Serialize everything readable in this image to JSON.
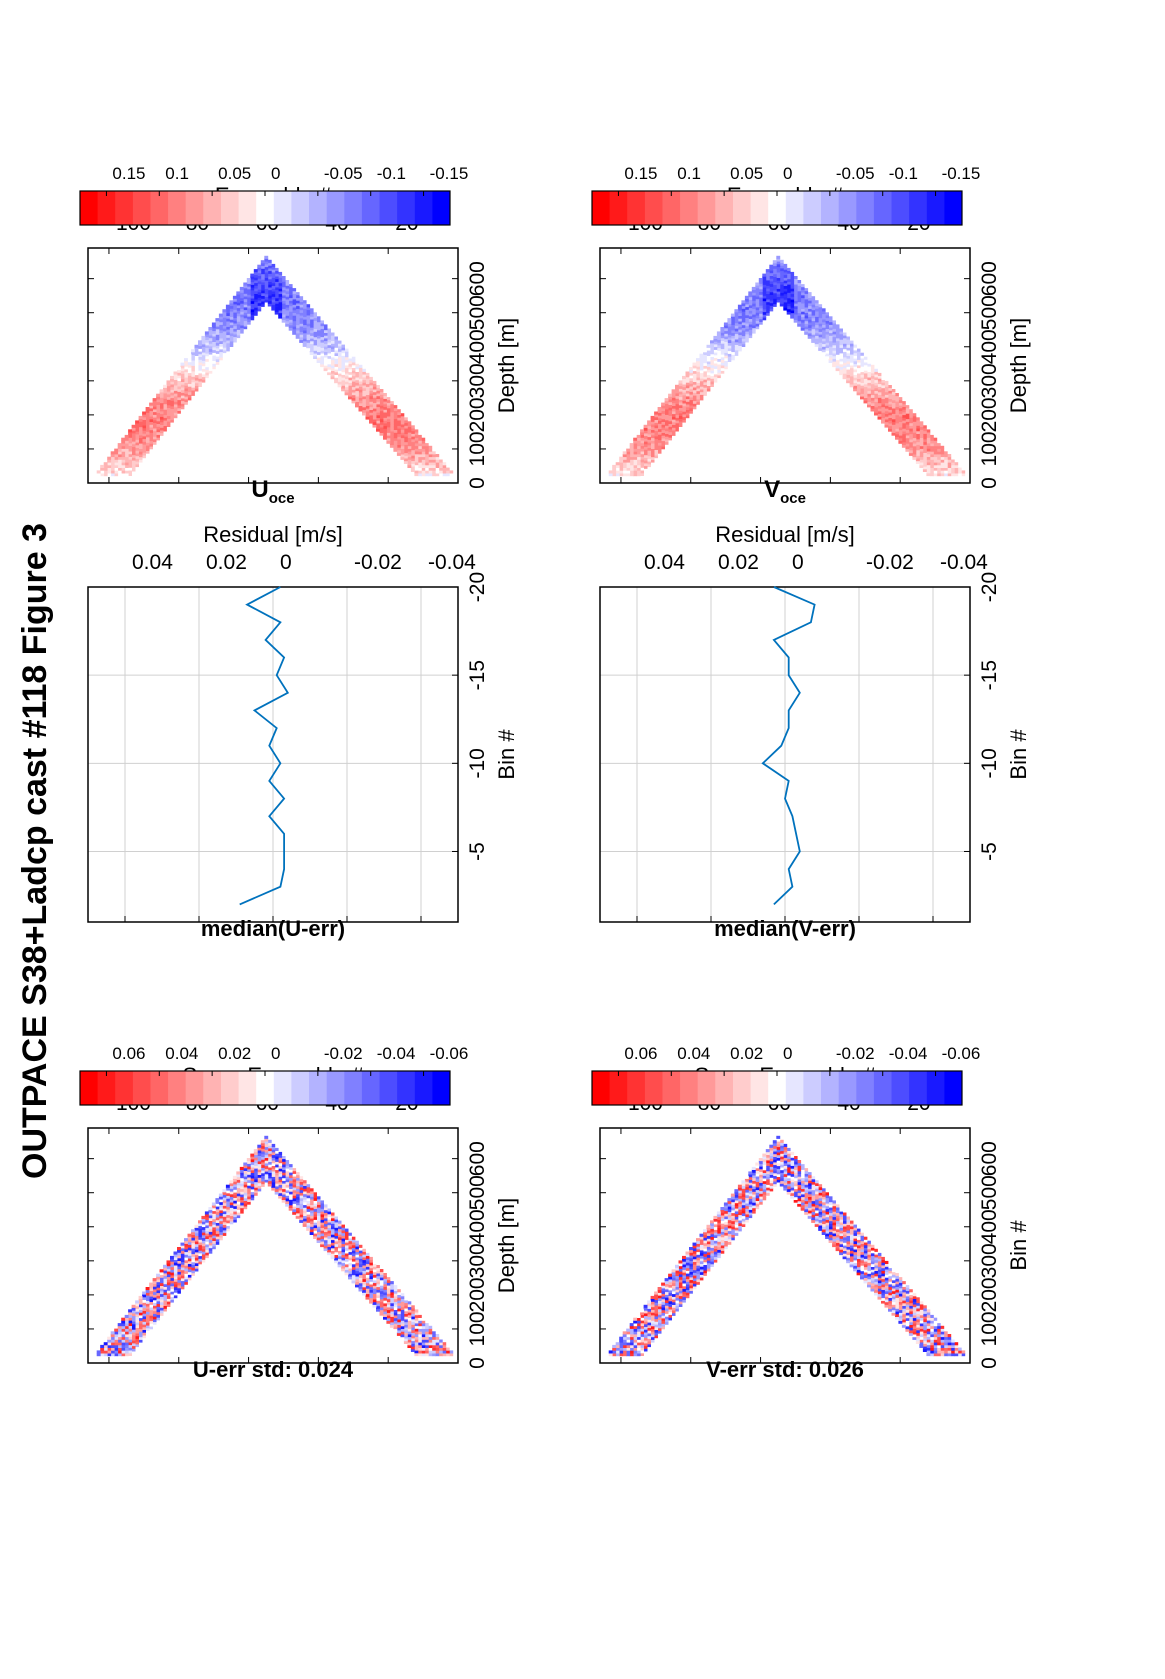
{
  "figure_title": "OUTPACE S38+Ladcp cast #118  Figure 3",
  "colors": {
    "line": "#0072BD",
    "grid": "#d0d0d0",
    "cmap_positive": "#ff0000",
    "cmap_zero": "#ffffff",
    "cmap_negative": "#0000ff"
  },
  "chart_data": [
    {
      "id": "u_err",
      "type": "heatmap",
      "title": "U-err std: 0.024",
      "xlabel": "Super Ensemble #",
      "ylabel": "Depth [m]",
      "xticks": [
        20,
        40,
        60,
        80,
        100
      ],
      "yticks": [
        0,
        100,
        200,
        300,
        400,
        500,
        600
      ],
      "xlim": [
        0,
        106
      ],
      "ylim": [
        0,
        690
      ],
      "colorbar": {
        "ticks": [
          0.06,
          0.04,
          0.02,
          0,
          -0.02,
          -0.04,
          -0.06
        ],
        "labels": [
          "0.06",
          "0.04",
          "0.02",
          "0",
          "-0.02",
          "-0.04",
          "-0.06"
        ],
        "range": [
          -0.07,
          0.07
        ]
      },
      "profile": {
        "surface_depth": 20,
        "max_depth": 660,
        "max_at_ensemble": 55
      }
    },
    {
      "id": "u_median",
      "type": "line",
      "title": "median(U-err)",
      "xlabel": "Residual [m/s]",
      "ylabel": "Bin #",
      "xticks": [
        -0.04,
        -0.02,
        0,
        0.02,
        0.04
      ],
      "xtick_labels": [
        "-0.04",
        "-0.02",
        "0",
        "0.02",
        "0.04"
      ],
      "yticks": [
        -5,
        -10,
        -15,
        -20
      ],
      "xlim": [
        -0.05,
        0.05
      ],
      "ylim": [
        -20,
        -1
      ],
      "series": [
        {
          "bins": [
            -2,
            -3,
            -4,
            -5,
            -6,
            -7,
            -8,
            -9,
            -10,
            -11,
            -12,
            -13,
            -14,
            -15,
            -16,
            -17,
            -18,
            -19,
            -20
          ],
          "values": [
            0.009,
            -0.002,
            -0.003,
            -0.003,
            -0.003,
            0.001,
            -0.003,
            0.001,
            -0.002,
            0.001,
            -0.001,
            0.005,
            -0.004,
            -0.001,
            -0.003,
            0.002,
            -0.002,
            0.007,
            -0.002
          ]
        }
      ]
    },
    {
      "id": "u_oce",
      "type": "heatmap",
      "title": "U",
      "title_sub": "oce",
      "xlabel": "Ensemble #",
      "ylabel": "Depth [m]",
      "xticks": [
        20,
        40,
        60,
        80,
        100
      ],
      "yticks": [
        0,
        100,
        200,
        300,
        400,
        500,
        600
      ],
      "xlim": [
        0,
        106
      ],
      "ylim": [
        0,
        690
      ],
      "colorbar": {
        "ticks": [
          0.15,
          0.1,
          0.05,
          0,
          -0.05,
          -0.1,
          -0.15
        ],
        "labels": [
          "0.15",
          "0.1",
          "0.05",
          "0",
          "-0.05",
          "-0.1",
          "-0.15"
        ],
        "range": [
          -0.175,
          0.175
        ]
      },
      "profile": {
        "surface_depth": 20,
        "max_depth": 660,
        "max_at_ensemble": 55
      }
    },
    {
      "id": "v_err",
      "type": "heatmap",
      "title": "V-err std: 0.026",
      "xlabel": "Super Ensemble #",
      "ylabel": "Bin #",
      "xticks": [
        20,
        40,
        60,
        80,
        100
      ],
      "yticks": [
        0,
        100,
        200,
        300,
        400,
        500,
        600
      ],
      "xlim": [
        0,
        106
      ],
      "ylim": [
        0,
        690
      ],
      "colorbar": {
        "ticks": [
          0.06,
          0.04,
          0.02,
          0,
          -0.02,
          -0.04,
          -0.06
        ],
        "labels": [
          "0.06",
          "0.04",
          "0.02",
          "0",
          "-0.02",
          "-0.04",
          "-0.06"
        ],
        "range": [
          -0.07,
          0.07
        ]
      },
      "profile": {
        "surface_depth": 20,
        "max_depth": 660,
        "max_at_ensemble": 55
      }
    },
    {
      "id": "v_median",
      "type": "line",
      "title": "median(V-err)",
      "xlabel": "Residual [m/s]",
      "ylabel": "Bin #",
      "xticks": [
        -0.04,
        -0.02,
        0,
        0.02,
        0.04
      ],
      "xtick_labels": [
        "-0.04",
        "-0.02",
        "0",
        "0.02",
        "0.04"
      ],
      "yticks": [
        -5,
        -10,
        -15,
        -20
      ],
      "xlim": [
        -0.05,
        0.05
      ],
      "ylim": [
        -20,
        -1
      ],
      "series": [
        {
          "bins": [
            -2,
            -3,
            -4,
            -5,
            -6,
            -7,
            -8,
            -9,
            -10,
            -11,
            -12,
            -13,
            -14,
            -15,
            -16,
            -17,
            -18,
            -19,
            -20
          ],
          "values": [
            0.003,
            -0.002,
            -0.001,
            -0.004,
            -0.003,
            -0.002,
            0.0,
            -0.001,
            0.006,
            0.001,
            -0.001,
            -0.001,
            -0.004,
            -0.001,
            -0.001,
            0.003,
            -0.007,
            -0.008,
            0.003
          ]
        }
      ]
    },
    {
      "id": "v_oce",
      "type": "heatmap",
      "title": "V",
      "title_sub": "oce",
      "xlabel": "Ensemble #",
      "ylabel": "Depth [m]",
      "xticks": [
        20,
        40,
        60,
        80,
        100
      ],
      "yticks": [
        0,
        100,
        200,
        300,
        400,
        500,
        600
      ],
      "xlim": [
        0,
        106
      ],
      "ylim": [
        0,
        690
      ],
      "colorbar": {
        "ticks": [
          0.15,
          0.1,
          0.05,
          0,
          -0.05,
          -0.1,
          -0.15
        ],
        "labels": [
          "0.15",
          "0.1",
          "0.05",
          "0",
          "-0.05",
          "-0.1",
          "-0.15"
        ],
        "range": [
          -0.175,
          0.175
        ]
      },
      "profile": {
        "surface_depth": 20,
        "max_depth": 660,
        "max_at_ensemble": 55
      }
    }
  ]
}
